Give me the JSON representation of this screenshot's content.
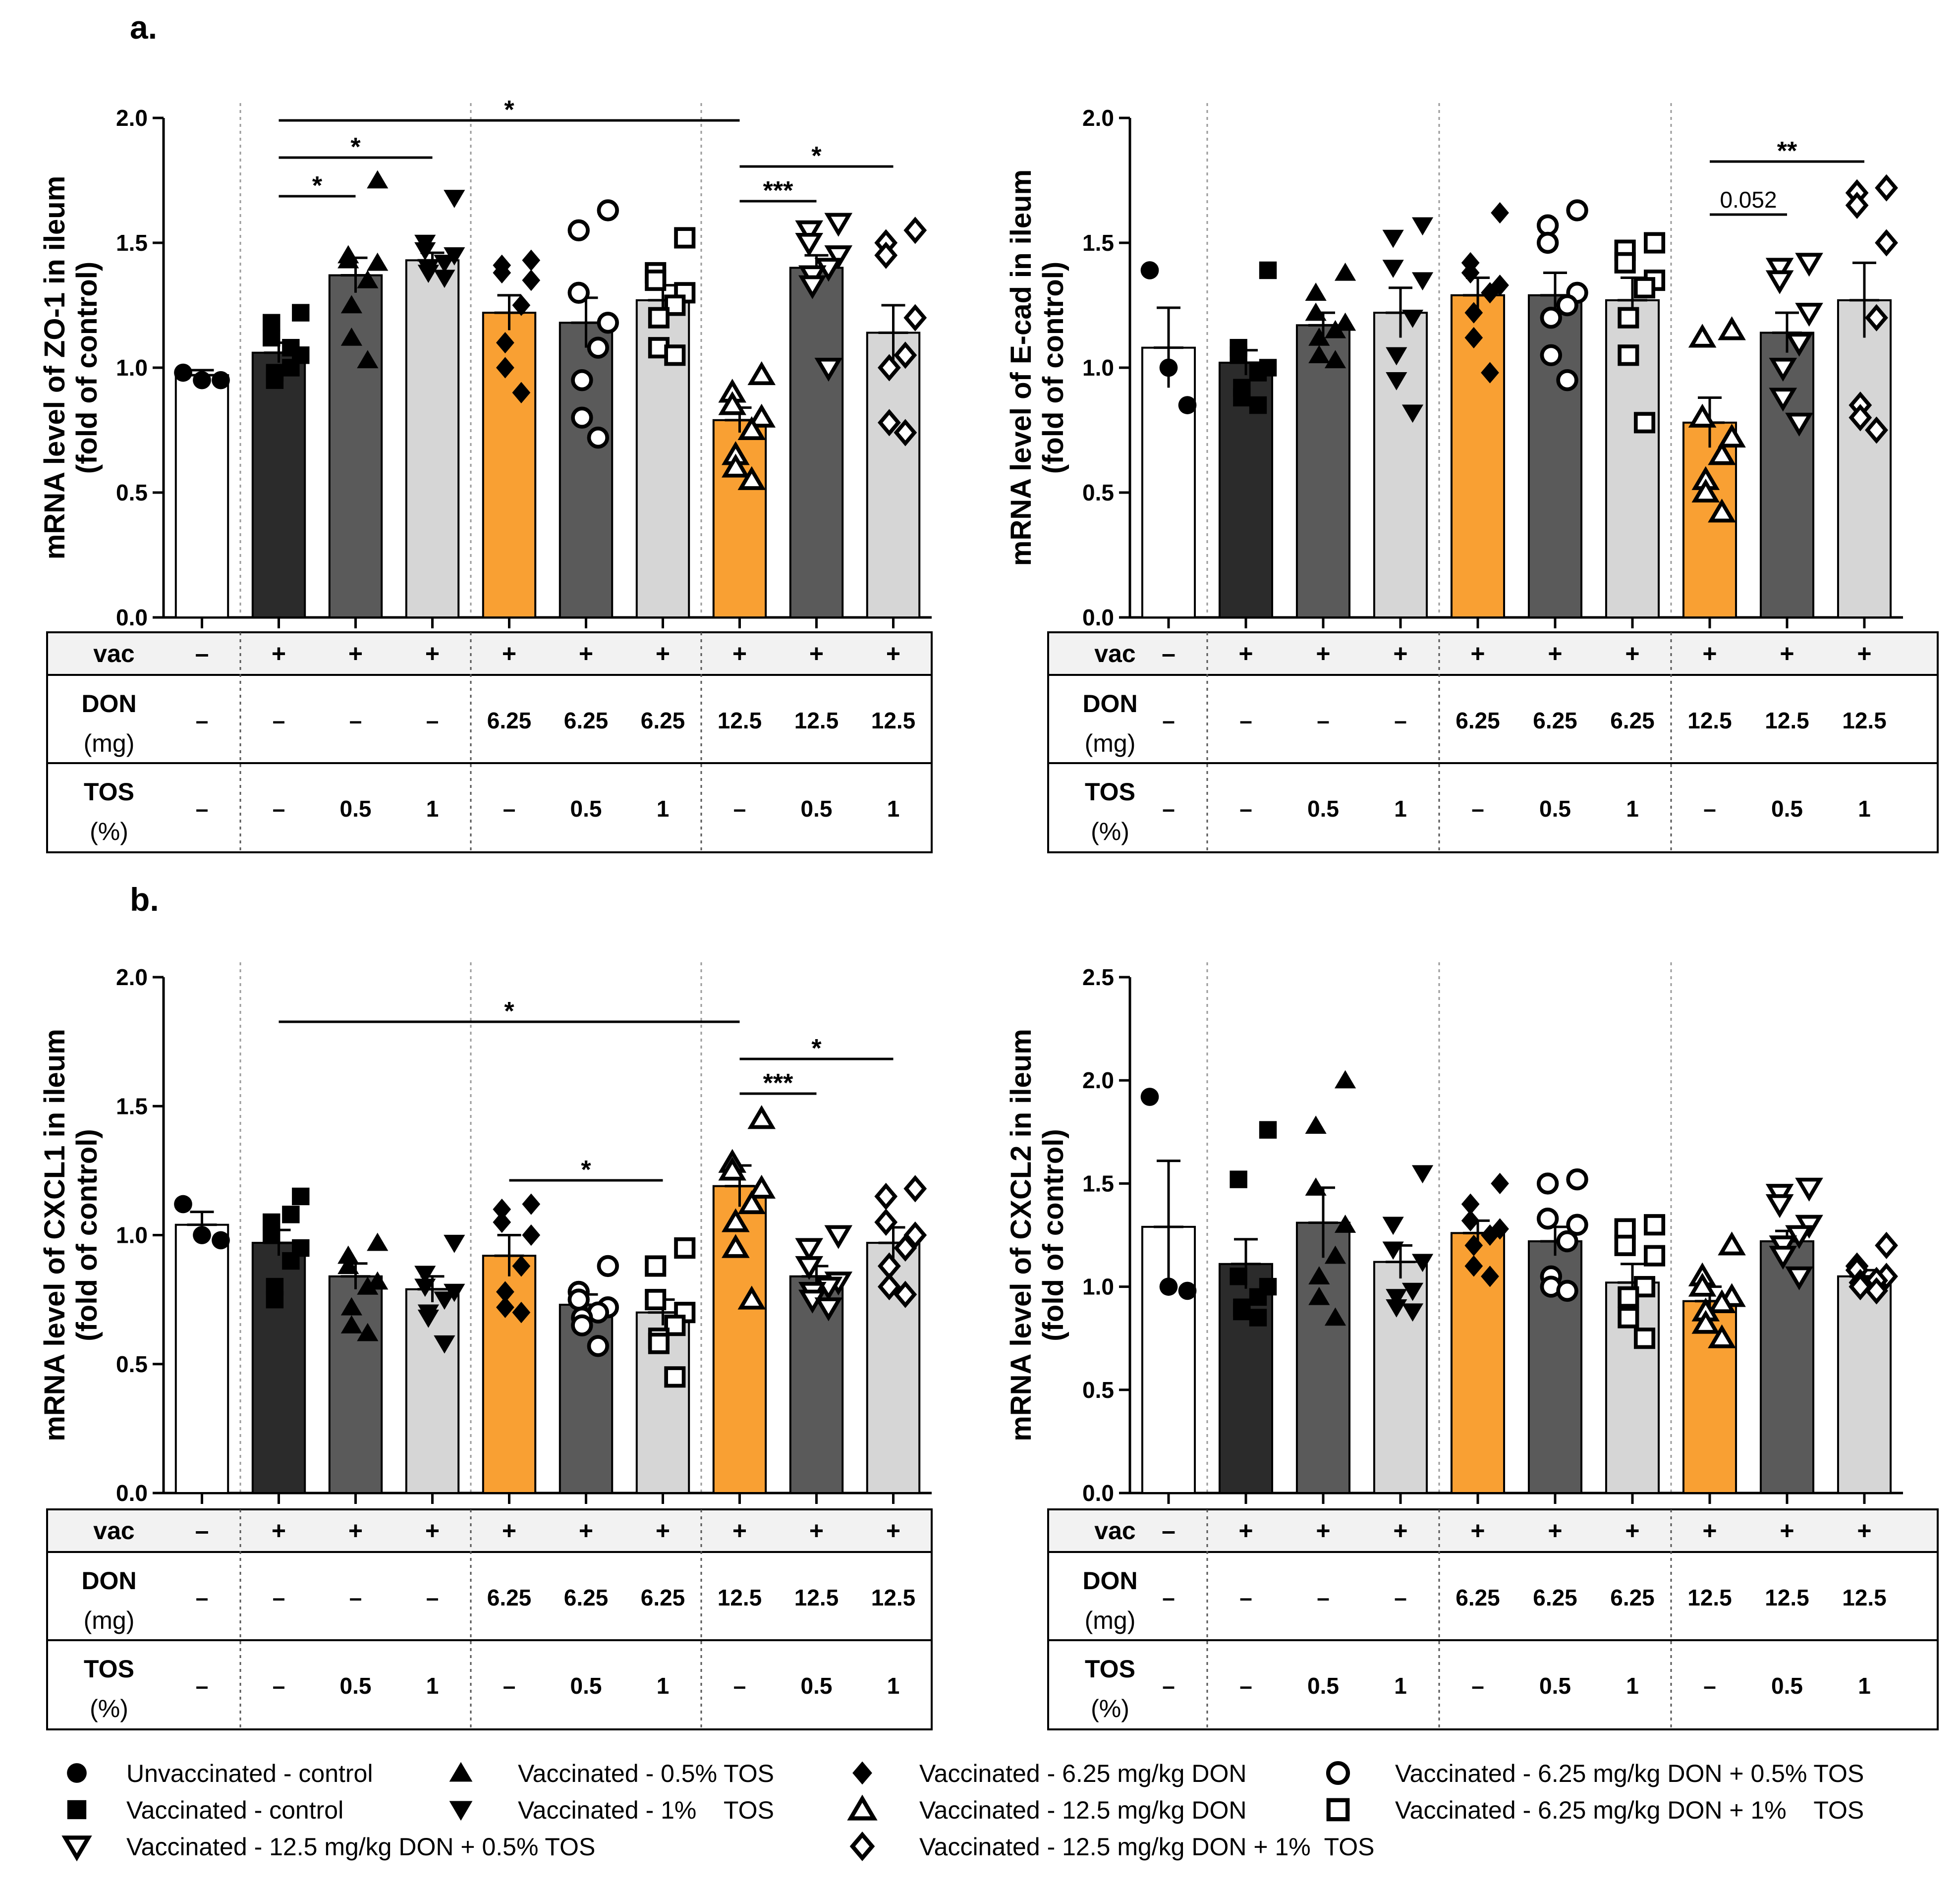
{
  "panel_labels": [
    "a.",
    "b."
  ],
  "row_headers": {
    "vac": "vac",
    "don_main": "DON",
    "don_unit": "(mg)",
    "tos_main": "TOS",
    "tos_unit": "(%)"
  },
  "conditions": {
    "vac": [
      "–",
      "+",
      "+",
      "+",
      "+",
      "+",
      "+",
      "+",
      "+",
      "+"
    ],
    "don": [
      "–",
      "–",
      "–",
      "–",
      "6.25",
      "6.25",
      "6.25",
      "12.5",
      "12.5",
      "12.5"
    ],
    "tos": [
      "–",
      "–",
      "0.5",
      "1",
      "–",
      "0.5",
      "1",
      "–",
      "0.5",
      "1"
    ]
  },
  "colors": {
    "white": "#ffffff",
    "black": "#2b2b2b",
    "dark": "#5a5a5a",
    "light": "#d6d6d6",
    "orange": "#f9a033"
  },
  "legend": [
    {
      "marker": "circle-filled",
      "label": "Unvaccinated - control"
    },
    {
      "marker": "triangle-filled",
      "label": "Vaccinated - 0.5% TOS"
    },
    {
      "marker": "diamond-filled",
      "label": "Vaccinated - 6.25 mg/kg DON"
    },
    {
      "marker": "circle-open",
      "label": "Vaccinated - 6.25 mg/kg DON + 0.5% TOS"
    },
    {
      "marker": "square-filled",
      "label": "Vaccinated - control"
    },
    {
      "marker": "triangle-down-filled",
      "label": "Vaccinated - 1%    TOS"
    },
    {
      "marker": "triangle-open",
      "label": "Vaccinated - 12.5 mg/kg DON"
    },
    {
      "marker": "square-open",
      "label": "Vaccinated - 6.25 mg/kg DON + 1%    TOS"
    },
    {
      "marker": "triangle-down-open",
      "label": "Vaccinated - 12.5 mg/kg DON + 0.5% TOS"
    },
    {
      "marker": "diamond-open",
      "label": "Vaccinated - 12.5 mg/kg DON + 1%  TOS"
    }
  ],
  "chart_data": [
    {
      "type": "bar",
      "title": "ZO-1",
      "ylabel_line1": "mRNA level of ZO-1 in ileum",
      "ylabel_line2": "(fold of control)",
      "ylim": [
        0,
        2.0
      ],
      "yticks": [
        "0.0",
        "0.5",
        "1.0",
        "1.5",
        "2.0"
      ],
      "categories": [
        "Unvaccinated - control",
        "Vaccinated - control",
        "Vaccinated - 0.5% TOS",
        "Vaccinated - 1% TOS",
        "Vaccinated - 6.25 mg/kg DON",
        "Vaccinated - 6.25 mg/kg DON + 0.5% TOS",
        "Vaccinated - 6.25 mg/kg DON + 1% TOS",
        "Vaccinated - 12.5 mg/kg DON",
        "Vaccinated - 12.5 mg/kg DON + 0.5% TOS",
        "Vaccinated - 12.5 mg/kg DON + 1% TOS"
      ],
      "values": [
        0.97,
        1.06,
        1.37,
        1.43,
        1.22,
        1.18,
        1.27,
        0.79,
        1.4,
        1.14
      ],
      "sem": [
        0.02,
        0.04,
        0.07,
        0.03,
        0.07,
        0.1,
        0.06,
        0.05,
        0.05,
        0.11
      ],
      "points": [
        [
          0.98,
          0.95,
          0.95
        ],
        [
          1.22,
          1.18,
          1.12,
          1.05,
          1.0,
          0.98,
          0.95,
          1.08
        ],
        [
          1.75,
          1.45,
          1.43,
          1.42,
          1.35,
          1.25,
          1.12,
          1.03
        ],
        [
          1.68,
          1.5,
          1.47,
          1.45,
          1.42,
          1.4,
          1.38,
          1.36
        ],
        [
          1.43,
          1.41,
          1.38,
          1.35,
          1.25,
          1.1,
          1.0,
          0.9
        ],
        [
          1.63,
          1.55,
          1.3,
          1.18,
          1.08,
          0.95,
          0.8,
          0.72
        ],
        [
          1.52,
          1.38,
          1.35,
          1.3,
          1.25,
          1.2,
          1.08,
          1.05
        ],
        [
          0.97,
          0.9,
          0.85,
          0.8,
          0.75,
          0.65,
          0.6,
          0.55
        ],
        [
          1.58,
          1.55,
          1.5,
          1.45,
          1.4,
          1.37,
          1.33,
          1.0
        ],
        [
          1.55,
          1.5,
          1.45,
          1.2,
          1.05,
          1.0,
          0.78,
          0.74
        ]
      ],
      "significance": [
        {
          "from": 1,
          "to": 7,
          "label": "*"
        },
        {
          "from": 1,
          "to": 3,
          "label": "*"
        },
        {
          "from": 1,
          "to": 2,
          "label": "*"
        },
        {
          "from": 7,
          "to": 9,
          "label": "*"
        },
        {
          "from": 7,
          "to": 8,
          "label": "***"
        }
      ]
    },
    {
      "type": "bar",
      "title": "E-cad",
      "ylabel_line1": "mRNA level of E-cad in ileum",
      "ylabel_line2": "(fold of control)",
      "ylim": [
        0,
        2.0
      ],
      "yticks": [
        "0.0",
        "0.5",
        "1.0",
        "1.5",
        "2.0"
      ],
      "categories": [
        "Unvaccinated - control",
        "Vaccinated - control",
        "Vaccinated - 0.5% TOS",
        "Vaccinated - 1% TOS",
        "Vaccinated - 6.25 mg/kg DON",
        "Vaccinated - 6.25 mg/kg DON + 0.5% TOS",
        "Vaccinated - 6.25 mg/kg DON + 1% TOS",
        "Vaccinated - 12.5 mg/kg DON",
        "Vaccinated - 12.5 mg/kg DON + 0.5% TOS",
        "Vaccinated - 12.5 mg/kg DON + 1% TOS"
      ],
      "values": [
        1.08,
        1.02,
        1.17,
        1.22,
        1.29,
        1.29,
        1.27,
        0.78,
        1.14,
        1.27
      ],
      "sem": [
        0.16,
        0.05,
        0.05,
        0.1,
        0.07,
        0.09,
        0.09,
        0.1,
        0.08,
        0.15
      ],
      "points": [
        [
          1.39,
          1.0,
          0.85
        ],
        [
          1.39,
          1.08,
          1.05,
          1.0,
          0.98,
          0.92,
          0.88,
          0.85
        ],
        [
          1.38,
          1.3,
          1.22,
          1.18,
          1.15,
          1.12,
          1.05,
          1.03
        ],
        [
          1.57,
          1.52,
          1.4,
          1.35,
          1.2,
          1.05,
          0.95,
          0.82
        ],
        [
          1.62,
          1.42,
          1.38,
          1.33,
          1.3,
          1.22,
          1.12,
          0.98
        ],
        [
          1.63,
          1.57,
          1.5,
          1.3,
          1.25,
          1.2,
          1.05,
          0.95
        ],
        [
          1.5,
          1.47,
          1.42,
          1.35,
          1.32,
          1.2,
          1.05,
          0.78
        ],
        [
          1.15,
          1.12,
          0.8,
          0.72,
          0.65,
          0.55,
          0.5,
          0.42
        ],
        [
          1.42,
          1.4,
          1.35,
          1.22,
          1.1,
          1.0,
          0.88,
          0.78
        ],
        [
          1.72,
          1.7,
          1.65,
          1.5,
          1.2,
          0.85,
          0.8,
          0.75
        ]
      ],
      "significance": [
        {
          "from": 7,
          "to": 9,
          "label": "**"
        },
        {
          "from": 7,
          "to": 8,
          "label": "0.052"
        }
      ]
    },
    {
      "type": "bar",
      "title": "CXCL1",
      "ylabel_line1": "mRNA level of CXCL1 in ileum",
      "ylabel_line2": "(fold of control)",
      "ylim": [
        0,
        2.0
      ],
      "yticks": [
        "0.0",
        "0.5",
        "1.0",
        "1.5",
        "2.0"
      ],
      "categories": [
        "Unvaccinated - control",
        "Vaccinated - control",
        "Vaccinated - 0.5% TOS",
        "Vaccinated - 1% TOS",
        "Vaccinated - 6.25 mg/kg DON",
        "Vaccinated - 6.25 mg/kg DON + 0.5% TOS",
        "Vaccinated - 6.25 mg/kg DON + 1% TOS",
        "Vaccinated - 12.5 mg/kg DON",
        "Vaccinated - 12.5 mg/kg DON + 0.5% TOS",
        "Vaccinated - 12.5 mg/kg DON + 1% TOS"
      ],
      "values": [
        1.04,
        0.97,
        0.84,
        0.79,
        0.92,
        0.73,
        0.7,
        1.19,
        0.84,
        0.97
      ],
      "sem": [
        0.05,
        0.05,
        0.05,
        0.05,
        0.08,
        0.04,
        0.05,
        0.08,
        0.04,
        0.06
      ],
      "points": [
        [
          1.12,
          1.0,
          0.98
        ],
        [
          1.15,
          1.05,
          1.0,
          0.95,
          0.9,
          0.8,
          0.75,
          1.08
        ],
        [
          0.97,
          0.92,
          0.88,
          0.82,
          0.8,
          0.72,
          0.65,
          0.62
        ],
        [
          0.97,
          0.85,
          0.8,
          0.78,
          0.75,
          0.7,
          0.68,
          0.58
        ],
        [
          1.12,
          1.1,
          1.05,
          1.0,
          0.88,
          0.78,
          0.72,
          0.7
        ],
        [
          0.88,
          0.78,
          0.75,
          0.72,
          0.7,
          0.68,
          0.65,
          0.57
        ],
        [
          0.95,
          0.88,
          0.75,
          0.7,
          0.65,
          0.6,
          0.58,
          0.45
        ],
        [
          1.45,
          1.28,
          1.25,
          1.18,
          1.12,
          1.05,
          0.95,
          0.75
        ],
        [
          1.0,
          0.95,
          0.88,
          0.82,
          0.8,
          0.78,
          0.75,
          0.72
        ],
        [
          1.18,
          1.15,
          1.05,
          1.0,
          0.95,
          0.88,
          0.8,
          0.77
        ]
      ],
      "significance": [
        {
          "from": 1,
          "to": 7,
          "label": "*"
        },
        {
          "from": 7,
          "to": 9,
          "label": "*"
        },
        {
          "from": 7,
          "to": 8,
          "label": "***"
        },
        {
          "from": 4,
          "to": 6,
          "label": "*"
        }
      ]
    },
    {
      "type": "bar",
      "title": "CXCL2",
      "ylabel_line1": "mRNA level of CXCL2 in ileum",
      "ylabel_line2": "(fold of control)",
      "ylim": [
        0,
        2.5
      ],
      "yticks": [
        "0.0",
        "0.5",
        "1.0",
        "1.5",
        "2.0",
        "2.5"
      ],
      "categories": [
        "Unvaccinated - control",
        "Vaccinated - control",
        "Vaccinated - 0.5% TOS",
        "Vaccinated - 1% TOS",
        "Vaccinated - 6.25 mg/kg DON",
        "Vaccinated - 6.25 mg/kg DON + 0.5% TOS",
        "Vaccinated - 6.25 mg/kg DON + 1% TOS",
        "Vaccinated - 12.5 mg/kg DON",
        "Vaccinated - 12.5 mg/kg DON + 0.5% TOS",
        "Vaccinated - 12.5 mg/kg DON + 1% TOS"
      ],
      "values": [
        1.29,
        1.11,
        1.31,
        1.12,
        1.26,
        1.22,
        1.02,
        0.93,
        1.22,
        1.05
      ],
      "sem": [
        0.32,
        0.12,
        0.17,
        0.08,
        0.06,
        0.07,
        0.09,
        0.07,
        0.05,
        0.03
      ],
      "points": [
        [
          1.92,
          1.0,
          0.98
        ],
        [
          1.76,
          1.52,
          1.05,
          1.0,
          0.95,
          0.9,
          0.88,
          0.85
        ],
        [
          2.0,
          1.78,
          1.48,
          1.3,
          1.15,
          1.05,
          0.95,
          0.85
        ],
        [
          1.55,
          1.3,
          1.18,
          1.12,
          0.98,
          0.95,
          0.9,
          0.88
        ],
        [
          1.5,
          1.4,
          1.32,
          1.28,
          1.25,
          1.2,
          1.1,
          1.05
        ],
        [
          1.52,
          1.5,
          1.33,
          1.3,
          1.22,
          1.05,
          1.0,
          0.98
        ],
        [
          1.3,
          1.28,
          1.2,
          1.15,
          1.0,
          0.95,
          0.85,
          0.75
        ],
        [
          1.2,
          1.05,
          1.0,
          0.95,
          0.92,
          0.88,
          0.82,
          0.75
        ],
        [
          1.48,
          1.45,
          1.4,
          1.3,
          1.25,
          1.2,
          1.15,
          1.05
        ],
        [
          1.2,
          1.1,
          1.08,
          1.05,
          1.03,
          1.02,
          1.0,
          0.98
        ]
      ],
      "significance": []
    }
  ]
}
